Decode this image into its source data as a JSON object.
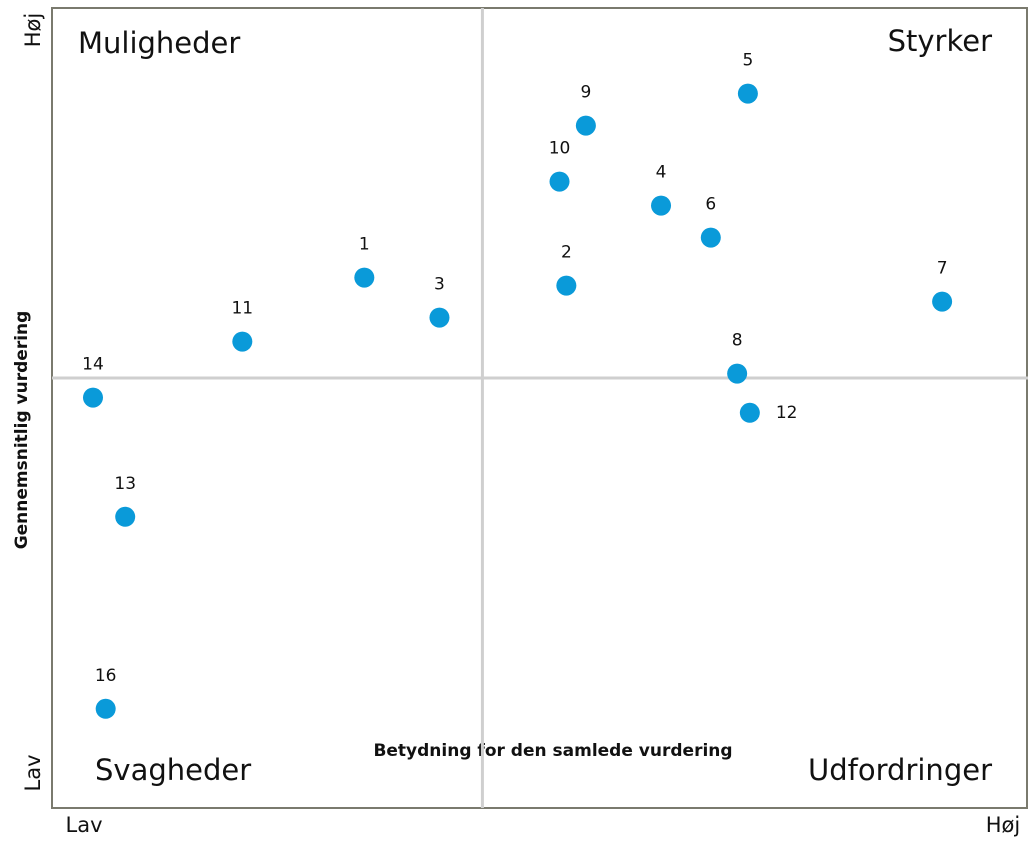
{
  "chart_data": {
    "type": "scatter",
    "x_label": "Betydning for den samlede vurdering",
    "y_label": "Gennemsnitlig vurdering",
    "xlim": [
      0,
      100
    ],
    "ylim": [
      0,
      100
    ],
    "xticks": [
      {
        "value": 0,
        "label": "Lav"
      },
      {
        "value": 100,
        "label": "Høj"
      }
    ],
    "yticks": [
      {
        "value": 0,
        "label": "Lav"
      },
      {
        "value": 100,
        "label": "Høj"
      }
    ],
    "quadrant_lines": {
      "x": 44.1,
      "y": 53.75
    },
    "quadrants": {
      "top_left": "Muligheder",
      "top_right": "Styrker",
      "bottom_left": "Svagheder",
      "bottom_right": "Udfordringer"
    },
    "color": "#0a9ad9",
    "labels": [
      "1",
      "2",
      "3",
      "4",
      "5",
      "6",
      "7",
      "8",
      "9",
      "10",
      "11",
      "12",
      "13",
      "14",
      "16"
    ],
    "x": [
      32.0,
      52.7,
      39.7,
      62.4,
      71.3,
      67.5,
      91.2,
      70.2,
      54.7,
      52.0,
      19.5,
      71.5,
      7.5,
      4.2,
      5.5
    ],
    "y": [
      66.3,
      65.3,
      61.3,
      75.3,
      89.3,
      71.3,
      63.3,
      54.3,
      85.3,
      78.3,
      58.3,
      49.4,
      36.4,
      51.3,
      12.4
    ]
  }
}
